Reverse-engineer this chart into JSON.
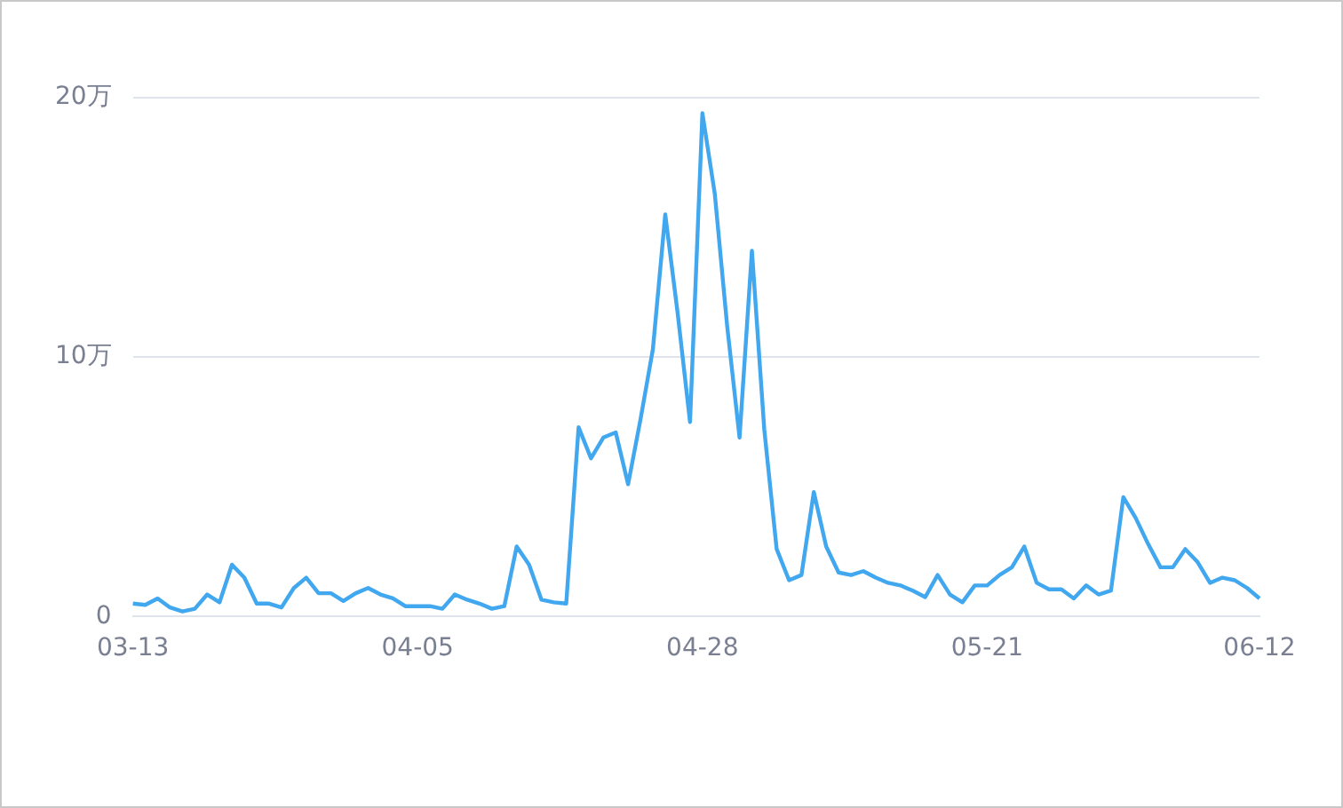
{
  "chart_data": {
    "type": "line",
    "categories": [
      "03-13",
      null,
      null,
      null,
      null,
      null,
      null,
      null,
      null,
      null,
      null,
      null,
      null,
      null,
      null,
      null,
      null,
      null,
      null,
      null,
      null,
      null,
      null,
      "04-05",
      null,
      null,
      null,
      null,
      null,
      null,
      null,
      null,
      null,
      null,
      null,
      null,
      null,
      null,
      null,
      null,
      null,
      null,
      null,
      null,
      null,
      null,
      "04-28",
      null,
      null,
      null,
      null,
      null,
      null,
      null,
      null,
      null,
      null,
      null,
      null,
      null,
      null,
      null,
      null,
      null,
      null,
      null,
      null,
      null,
      null,
      "05-21",
      null,
      null,
      null,
      null,
      null,
      null,
      null,
      null,
      null,
      null,
      null,
      null,
      null,
      null,
      null,
      null,
      null,
      null,
      null,
      null,
      null,
      "06-12"
    ],
    "values": [
      0.5,
      0.45,
      0.7,
      0.35,
      0.2,
      0.3,
      0.85,
      0.55,
      2.0,
      1.5,
      0.5,
      0.5,
      0.35,
      1.1,
      1.5,
      0.9,
      0.9,
      0.6,
      0.9,
      1.1,
      0.85,
      0.7,
      0.4,
      0.4,
      0.4,
      0.3,
      0.85,
      0.65,
      0.5,
      0.3,
      0.4,
      2.7,
      2.0,
      0.65,
      0.55,
      0.5,
      7.3,
      6.1,
      6.9,
      7.1,
      5.1,
      7.6,
      10.3,
      15.5,
      11.7,
      7.5,
      19.4,
      16.3,
      11.2,
      6.9,
      14.1,
      7.2,
      2.6,
      1.4,
      1.6,
      4.8,
      2.7,
      1.7,
      1.6,
      1.75,
      1.5,
      1.3,
      1.2,
      1.0,
      0.75,
      1.6,
      0.85,
      0.55,
      1.2,
      1.2,
      1.6,
      1.9,
      2.7,
      1.3,
      1.05,
      1.05,
      0.7,
      1.2,
      0.85,
      1.0,
      4.6,
      3.8,
      2.8,
      1.9,
      1.9,
      2.6,
      2.1,
      1.3,
      1.5,
      1.4,
      1.1,
      0.7
    ],
    "color": "#41a7ee",
    "ylim": [
      0,
      20
    ],
    "yticks": [
      0,
      {
        "value": 10,
        "label": "10万"
      },
      {
        "value": 20,
        "label": "20万"
      }
    ],
    "grid": "y",
    "marker": "none"
  }
}
